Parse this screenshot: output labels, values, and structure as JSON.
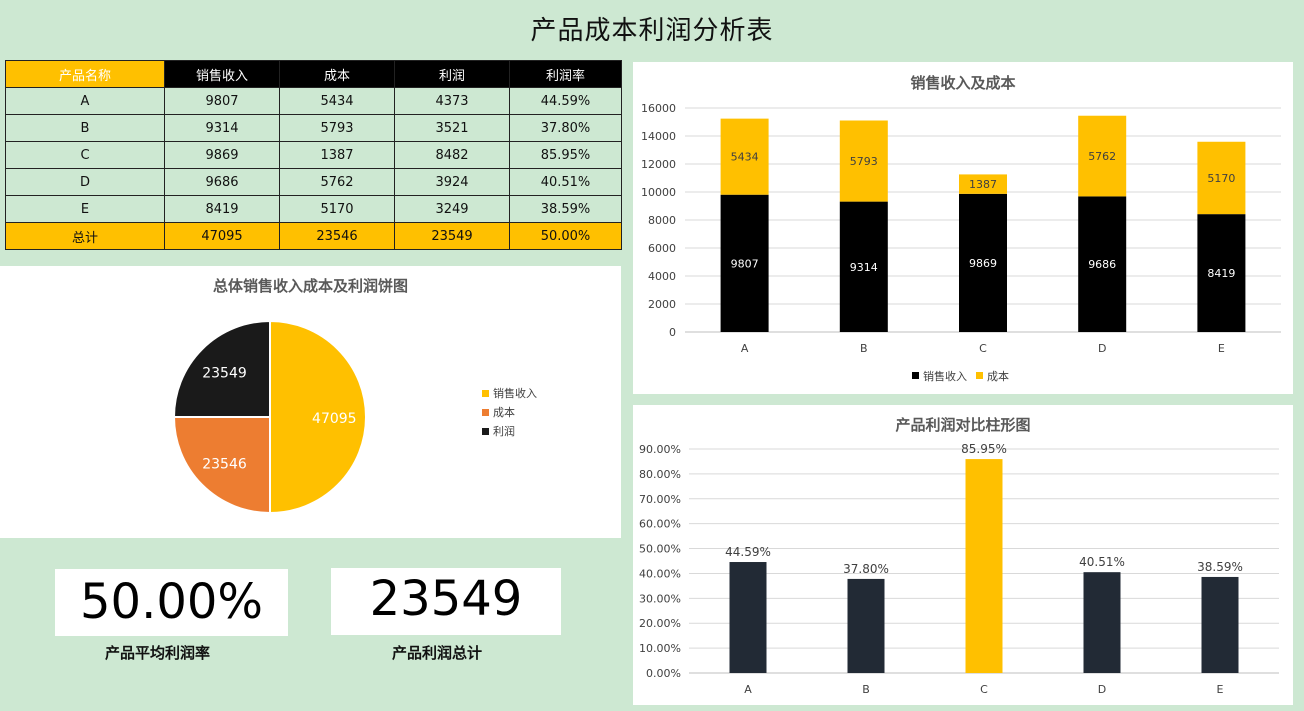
{
  "page_title": "产品成本利润分析表",
  "table": {
    "headers": [
      "产品名称",
      "销售收入",
      "成本",
      "利润",
      "利润率"
    ],
    "rows": [
      [
        "A",
        "9807",
        "5434",
        "4373",
        "44.59%"
      ],
      [
        "B",
        "9314",
        "5793",
        "3521",
        "37.80%"
      ],
      [
        "C",
        "9869",
        "1387",
        "8482",
        "85.95%"
      ],
      [
        "D",
        "9686",
        "5762",
        "3924",
        "40.51%"
      ],
      [
        "E",
        "8419",
        "5170",
        "3249",
        "38.59%"
      ]
    ],
    "total": [
      "总计",
      "47095",
      "23546",
      "23549",
      "50.00%"
    ]
  },
  "kpis": {
    "avg_margin_value": "50.00%",
    "avg_margin_label": "产品平均利润率",
    "profit_total_value": "23549",
    "profit_total_label": "产品利润总计"
  },
  "colors": {
    "black": "#000000",
    "gold": "#ffc000",
    "orange": "#ed7d31",
    "dark_navy": "#222a35",
    "background": "#cde8d2"
  },
  "chart_data": [
    {
      "type": "pie",
      "title": "总体销售收入成本及利润饼图",
      "categories": [
        "销售收入",
        "成本",
        "利润"
      ],
      "values": [
        47095,
        23546,
        23549
      ],
      "colors": [
        "#ffc000",
        "#ed7d31",
        "#1a1a1a"
      ],
      "legend": "right"
    },
    {
      "type": "bar",
      "stacked": true,
      "title": "销售收入及成本",
      "categories": [
        "A",
        "B",
        "C",
        "D",
        "E"
      ],
      "series": [
        {
          "name": "销售收入",
          "values": [
            9807,
            9314,
            9869,
            9686,
            8419
          ],
          "color": "#000000"
        },
        {
          "name": "成本",
          "values": [
            5434,
            5793,
            1387,
            5762,
            5170
          ],
          "color": "#ffc000"
        }
      ],
      "ylim": [
        0,
        16000
      ],
      "yticks": [
        0,
        2000,
        4000,
        6000,
        8000,
        10000,
        12000,
        14000,
        16000
      ],
      "grid": true,
      "legend": "bottom"
    },
    {
      "type": "bar",
      "title": "产品利润对比柱形图",
      "categories": [
        "A",
        "B",
        "C",
        "D",
        "E"
      ],
      "values": [
        44.59,
        37.8,
        85.95,
        40.51,
        38.59
      ],
      "value_labels": [
        "44.59%",
        "37.80%",
        "85.95%",
        "40.51%",
        "38.59%"
      ],
      "colors": [
        "#222a35",
        "#222a35",
        "#ffc000",
        "#222a35",
        "#222a35"
      ],
      "ylim": [
        0,
        90
      ],
      "ytick_labels": [
        "0.00%",
        "10.00%",
        "20.00%",
        "30.00%",
        "40.00%",
        "50.00%",
        "60.00%",
        "70.00%",
        "80.00%",
        "90.00%"
      ],
      "grid": true
    }
  ]
}
